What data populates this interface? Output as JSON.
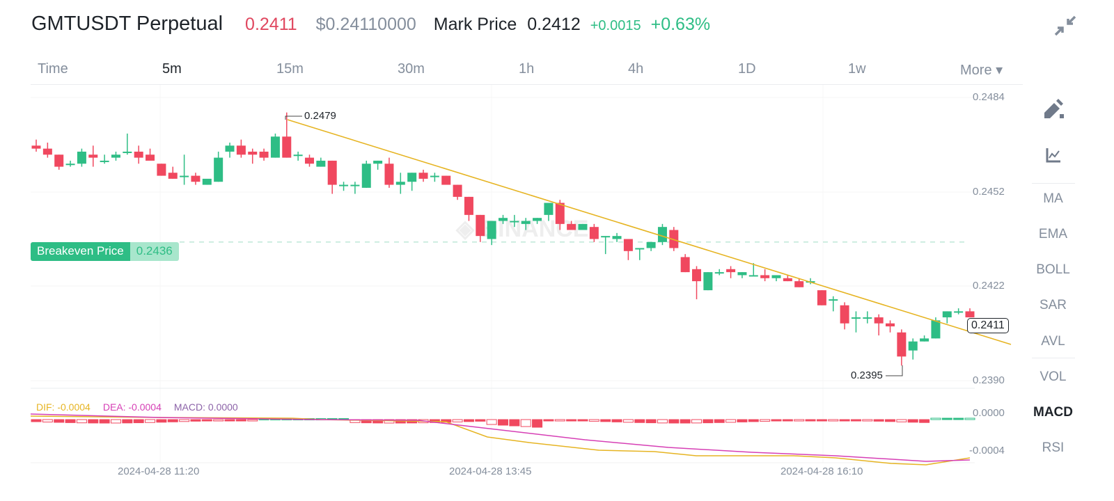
{
  "header": {
    "symbol": "GMTUSDT Perpetual",
    "last_price": "0.2411",
    "usd_price": "$0.24110000",
    "mark_price_label": "Mark Price",
    "mark_price": "0.2412",
    "change": "+0.0015",
    "change_pct": "+0.63%",
    "collapse_icon": "collapse-arrows-icon"
  },
  "timeframes": [
    {
      "label": "Time",
      "active": false
    },
    {
      "label": "5m",
      "active": true
    },
    {
      "label": "15m",
      "active": false
    },
    {
      "label": "30m",
      "active": false
    },
    {
      "label": "1h",
      "active": false
    },
    {
      "label": "4h",
      "active": false
    },
    {
      "label": "1D",
      "active": false
    },
    {
      "label": "1w",
      "active": false
    },
    {
      "label": "More ▾",
      "active": false
    }
  ],
  "sidebar": {
    "tools": [
      "draw-pencil-icon",
      "indicator-chart-icon"
    ],
    "indicators": [
      {
        "label": "MA",
        "active": false
      },
      {
        "label": "EMA",
        "active": false
      },
      {
        "label": "BOLL",
        "active": false
      },
      {
        "label": "SAR",
        "active": false
      },
      {
        "label": "AVL",
        "active": false
      },
      {
        "label": "VOL",
        "active": false
      },
      {
        "label": "MACD",
        "active": true
      },
      {
        "label": "RSI",
        "active": false
      }
    ]
  },
  "colors": {
    "up": "#2ebd85",
    "down": "#f0485f",
    "trendline": "#e6b422",
    "dif": "#e6b422",
    "dea": "#d63fb5",
    "breakeven": "#2ebd85"
  },
  "breakeven": {
    "label": "Breakeven Price",
    "value": "0.2436"
  },
  "current_price_tag": "0.2411",
  "annotations": {
    "high": "0.2479",
    "low": "0.2395"
  },
  "macd_legend": {
    "dif": "DIF: -0.0004",
    "dea": "DEA: -0.0004",
    "macd": "MACD: 0.0000"
  },
  "chart_data": {
    "type": "candlestick",
    "title": "GMTUSDT Perpetual 5m",
    "y_axis_ticks": [
      "0.2484",
      "0.2452",
      "0.2422",
      "0.2390"
    ],
    "ylim": [
      0.239,
      0.2484
    ],
    "x_axis_ticks": [
      "2024-04-28 11:20",
      "2024-04-28 13:45",
      "2024-04-28 16:10"
    ],
    "macd_axis_ticks": [
      "0.0000",
      "-0.0004"
    ],
    "high_annotation": 0.2479,
    "low_annotation": 0.2395,
    "breakeven_price": 0.2436,
    "last_price": 0.2411,
    "trendline": {
      "from": [
        0.2479
      ],
      "to_end_price": 0.2408,
      "color": "#e6b422"
    },
    "candles_ohlc": [
      [
        0.2468,
        0.247,
        0.2466,
        0.2467
      ],
      [
        0.2467,
        0.2469,
        0.2464,
        0.2465
      ],
      [
        0.2465,
        0.2465,
        0.246,
        0.2461
      ],
      [
        0.2462,
        0.2463,
        0.2461,
        0.2462
      ],
      [
        0.2462,
        0.2467,
        0.2461,
        0.2466
      ],
      [
        0.2465,
        0.2468,
        0.2461,
        0.2464
      ],
      [
        0.2463,
        0.2465,
        0.2462,
        0.2463
      ],
      [
        0.2464,
        0.2466,
        0.2463,
        0.2465
      ],
      [
        0.2466,
        0.2472,
        0.2465,
        0.2466
      ],
      [
        0.2466,
        0.2468,
        0.2462,
        0.2464
      ],
      [
        0.2465,
        0.2467,
        0.2464,
        0.2463
      ],
      [
        0.2462,
        0.2462,
        0.2458,
        0.2458
      ],
      [
        0.2459,
        0.2461,
        0.2457,
        0.2457
      ],
      [
        0.2458,
        0.2465,
        0.2455,
        0.2458
      ],
      [
        0.2458,
        0.2459,
        0.2455,
        0.2456
      ],
      [
        0.2455,
        0.2456,
        0.2455,
        0.2457
      ],
      [
        0.2456,
        0.2466,
        0.2456,
        0.2464
      ],
      [
        0.2466,
        0.2469,
        0.2464,
        0.2468
      ],
      [
        0.2468,
        0.247,
        0.2464,
        0.2465
      ],
      [
        0.2466,
        0.2467,
        0.2462,
        0.2465
      ],
      [
        0.2466,
        0.2467,
        0.2463,
        0.2464
      ],
      [
        0.2464,
        0.2472,
        0.2464,
        0.2471
      ],
      [
        0.2471,
        0.2479,
        0.2464,
        0.2464
      ],
      [
        0.2465,
        0.2466,
        0.2463,
        0.2465
      ],
      [
        0.2464,
        0.2465,
        0.2461,
        0.2462
      ],
      [
        0.2461,
        0.2464,
        0.2461,
        0.2463
      ],
      [
        0.2463,
        0.2463,
        0.2452,
        0.2455
      ],
      [
        0.2455,
        0.2456,
        0.2453,
        0.2455
      ],
      [
        0.2455,
        0.2456,
        0.2452,
        0.2455
      ],
      [
        0.2454,
        0.2463,
        0.2454,
        0.2462
      ],
      [
        0.2462,
        0.2463,
        0.246,
        0.2463
      ],
      [
        0.2462,
        0.2464,
        0.2454,
        0.2455
      ],
      [
        0.2455,
        0.2459,
        0.2452,
        0.2456
      ],
      [
        0.2456,
        0.2459,
        0.2453,
        0.2459
      ],
      [
        0.2459,
        0.246,
        0.2456,
        0.2457
      ],
      [
        0.2458,
        0.2459,
        0.2456,
        0.2458
      ],
      [
        0.2458,
        0.2458,
        0.2456,
        0.2455
      ],
      [
        0.2455,
        0.2455,
        0.245,
        0.2451
      ],
      [
        0.2451,
        0.2451,
        0.2443,
        0.2445
      ],
      [
        0.2445,
        0.2445,
        0.2436,
        0.2438
      ],
      [
        0.2437,
        0.2443,
        0.2435,
        0.2443
      ],
      [
        0.2443,
        0.2445,
        0.2442,
        0.2444
      ],
      [
        0.2443,
        0.2445,
        0.2441,
        0.2443
      ],
      [
        0.2442,
        0.2444,
        0.244,
        0.2443
      ],
      [
        0.2443,
        0.2444,
        0.2442,
        0.2444
      ],
      [
        0.2445,
        0.2448,
        0.2443,
        0.2449
      ],
      [
        0.2449,
        0.245,
        0.244,
        0.2442
      ],
      [
        0.2442,
        0.2443,
        0.244,
        0.244
      ],
      [
        0.244,
        0.2442,
        0.244,
        0.2442
      ],
      [
        0.2441,
        0.2442,
        0.2436,
        0.2437
      ],
      [
        0.2438,
        0.2438,
        0.2432,
        0.2438
      ],
      [
        0.2437,
        0.2439,
        0.2436,
        0.2438
      ],
      [
        0.2437,
        0.2437,
        0.243,
        0.2433
      ],
      [
        0.2434,
        0.2434,
        0.243,
        0.2434
      ],
      [
        0.2434,
        0.2436,
        0.2433,
        0.2436
      ],
      [
        0.2436,
        0.2442,
        0.2435,
        0.2441
      ],
      [
        0.244,
        0.2441,
        0.2433,
        0.2434
      ],
      [
        0.2431,
        0.2432,
        0.2426,
        0.2426
      ],
      [
        0.2427,
        0.2428,
        0.2417,
        0.2423
      ],
      [
        0.242,
        0.2426,
        0.242,
        0.2426
      ],
      [
        0.2426,
        0.2427,
        0.2425,
        0.2426
      ],
      [
        0.2427,
        0.2428,
        0.2424,
        0.2426
      ],
      [
        0.2425,
        0.2426,
        0.2424,
        0.2426
      ],
      [
        0.2425,
        0.2429,
        0.2425,
        0.2425
      ],
      [
        0.2425,
        0.2427,
        0.2423,
        0.2424
      ],
      [
        0.2424,
        0.2425,
        0.2423,
        0.2425
      ],
      [
        0.2424,
        0.2425,
        0.2423,
        0.2423
      ],
      [
        0.2423,
        0.2424,
        0.2421,
        0.2421
      ],
      [
        0.2423,
        0.2424,
        0.2422,
        0.2423
      ],
      [
        0.242,
        0.242,
        0.2415,
        0.2415
      ],
      [
        0.2417,
        0.2418,
        0.2413,
        0.2417
      ],
      [
        0.2415,
        0.2416,
        0.2407,
        0.2409
      ],
      [
        0.2411,
        0.2413,
        0.2406,
        0.2411
      ],
      [
        0.2411,
        0.2413,
        0.2409,
        0.2411
      ],
      [
        0.2411,
        0.2412,
        0.2405,
        0.2409
      ],
      [
        0.2409,
        0.241,
        0.2406,
        0.2408
      ],
      [
        0.2406,
        0.2407,
        0.2395,
        0.2398
      ],
      [
        0.24,
        0.2404,
        0.2397,
        0.2403
      ],
      [
        0.2403,
        0.2405,
        0.2403,
        0.2404
      ],
      [
        0.2404,
        0.2411,
        0.2404,
        0.241
      ],
      [
        0.2411,
        0.2413,
        0.2409,
        0.2413
      ],
      [
        0.2413,
        0.2414,
        0.2412,
        0.2413
      ],
      [
        0.2413,
        0.2414,
        0.2411,
        0.2411
      ]
    ]
  }
}
